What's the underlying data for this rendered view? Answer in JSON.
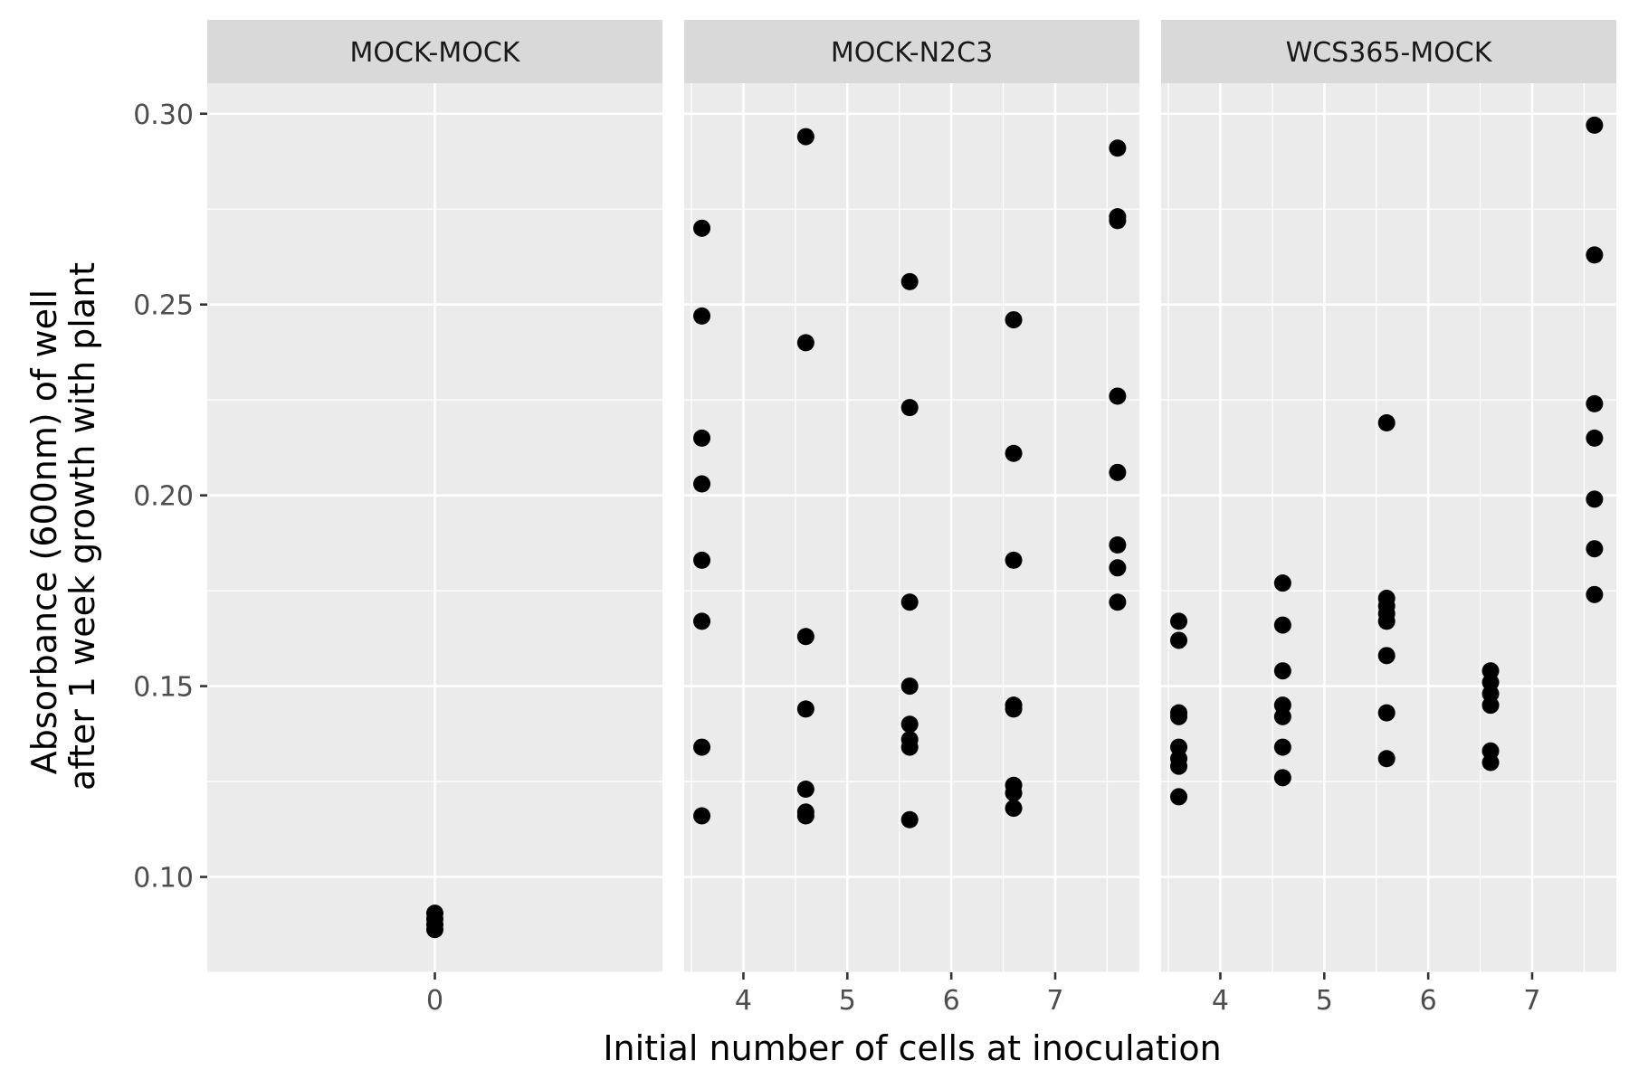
{
  "chart_data": {
    "type": "scatter",
    "xlabel": "Initial number of cells at inoculation",
    "ylabel_lines": [
      "Absorbance (600nm) of well",
      "after 1 week growth with plant"
    ],
    "ylim": [
      0.075,
      0.308
    ],
    "y_ticks": [
      0.1,
      0.15,
      0.2,
      0.25,
      0.3
    ],
    "y_tick_labels": [
      "0.10",
      "0.15",
      "0.20",
      "0.25",
      "0.30"
    ],
    "panels": [
      {
        "name": "MOCK-MOCK",
        "xlim": [
          -2.185,
          2.185
        ],
        "x_ticks": [
          0
        ],
        "x_tick_labels": [
          "0"
        ],
        "points": [
          {
            "x": 0,
            "y": 0.0905
          },
          {
            "x": 0,
            "y": 0.089
          },
          {
            "x": 0,
            "y": 0.0875
          },
          {
            "x": 0,
            "y": 0.0862
          }
        ]
      },
      {
        "name": "MOCK-N2C3",
        "xlim": [
          3.43,
          7.81
        ],
        "x_ticks": [
          4,
          5,
          6,
          7
        ],
        "x_tick_labels": [
          "4",
          "5",
          "6",
          "7"
        ],
        "points": [
          {
            "x": 3.6,
            "y": 0.27
          },
          {
            "x": 3.6,
            "y": 0.247
          },
          {
            "x": 3.6,
            "y": 0.215
          },
          {
            "x": 3.6,
            "y": 0.203
          },
          {
            "x": 3.6,
            "y": 0.183
          },
          {
            "x": 3.6,
            "y": 0.167
          },
          {
            "x": 3.6,
            "y": 0.134
          },
          {
            "x": 3.6,
            "y": 0.116
          },
          {
            "x": 4.6,
            "y": 0.294
          },
          {
            "x": 4.6,
            "y": 0.24
          },
          {
            "x": 4.6,
            "y": 0.163
          },
          {
            "x": 4.6,
            "y": 0.144
          },
          {
            "x": 4.6,
            "y": 0.123
          },
          {
            "x": 4.6,
            "y": 0.117
          },
          {
            "x": 4.6,
            "y": 0.116
          },
          {
            "x": 5.6,
            "y": 0.256
          },
          {
            "x": 5.6,
            "y": 0.223
          },
          {
            "x": 5.6,
            "y": 0.172
          },
          {
            "x": 5.6,
            "y": 0.15
          },
          {
            "x": 5.6,
            "y": 0.14
          },
          {
            "x": 5.6,
            "y": 0.136
          },
          {
            "x": 5.6,
            "y": 0.134
          },
          {
            "x": 5.6,
            "y": 0.115
          },
          {
            "x": 6.6,
            "y": 0.246
          },
          {
            "x": 6.6,
            "y": 0.211
          },
          {
            "x": 6.6,
            "y": 0.183
          },
          {
            "x": 6.6,
            "y": 0.145
          },
          {
            "x": 6.6,
            "y": 0.144
          },
          {
            "x": 6.6,
            "y": 0.124
          },
          {
            "x": 6.6,
            "y": 0.122
          },
          {
            "x": 6.6,
            "y": 0.118
          },
          {
            "x": 7.6,
            "y": 0.291
          },
          {
            "x": 7.6,
            "y": 0.273
          },
          {
            "x": 7.6,
            "y": 0.272
          },
          {
            "x": 7.6,
            "y": 0.226
          },
          {
            "x": 7.6,
            "y": 0.206
          },
          {
            "x": 7.6,
            "y": 0.187
          },
          {
            "x": 7.6,
            "y": 0.181
          },
          {
            "x": 7.6,
            "y": 0.172
          }
        ]
      },
      {
        "name": "WCS365-MOCK",
        "xlim": [
          3.43,
          7.81
        ],
        "x_ticks": [
          4,
          5,
          6,
          7
        ],
        "x_tick_labels": [
          "4",
          "5",
          "6",
          "7"
        ],
        "points": [
          {
            "x": 3.6,
            "y": 0.167
          },
          {
            "x": 3.6,
            "y": 0.162
          },
          {
            "x": 3.6,
            "y": 0.143
          },
          {
            "x": 3.6,
            "y": 0.142
          },
          {
            "x": 3.6,
            "y": 0.134
          },
          {
            "x": 3.6,
            "y": 0.131
          },
          {
            "x": 3.6,
            "y": 0.129
          },
          {
            "x": 3.6,
            "y": 0.121
          },
          {
            "x": 4.6,
            "y": 0.177
          },
          {
            "x": 4.6,
            "y": 0.166
          },
          {
            "x": 4.6,
            "y": 0.154
          },
          {
            "x": 4.6,
            "y": 0.145
          },
          {
            "x": 4.6,
            "y": 0.142
          },
          {
            "x": 4.6,
            "y": 0.134
          },
          {
            "x": 4.6,
            "y": 0.126
          },
          {
            "x": 5.6,
            "y": 0.219
          },
          {
            "x": 5.6,
            "y": 0.173
          },
          {
            "x": 5.6,
            "y": 0.171
          },
          {
            "x": 5.6,
            "y": 0.169
          },
          {
            "x": 5.6,
            "y": 0.167
          },
          {
            "x": 5.6,
            "y": 0.158
          },
          {
            "x": 5.6,
            "y": 0.143
          },
          {
            "x": 5.6,
            "y": 0.131
          },
          {
            "x": 6.6,
            "y": 0.154
          },
          {
            "x": 6.6,
            "y": 0.151
          },
          {
            "x": 6.6,
            "y": 0.148
          },
          {
            "x": 6.6,
            "y": 0.145
          },
          {
            "x": 6.6,
            "y": 0.133
          },
          {
            "x": 6.6,
            "y": 0.13
          },
          {
            "x": 7.6,
            "y": 0.297
          },
          {
            "x": 7.6,
            "y": 0.263
          },
          {
            "x": 7.6,
            "y": 0.224
          },
          {
            "x": 7.6,
            "y": 0.215
          },
          {
            "x": 7.6,
            "y": 0.199
          },
          {
            "x": 7.6,
            "y": 0.186
          },
          {
            "x": 7.6,
            "y": 0.174
          }
        ]
      }
    ],
    "grid": true,
    "legend": "none",
    "point_color": "#000000",
    "panel_background": "#ebebeb",
    "strip_background": "#d9d9d9"
  }
}
